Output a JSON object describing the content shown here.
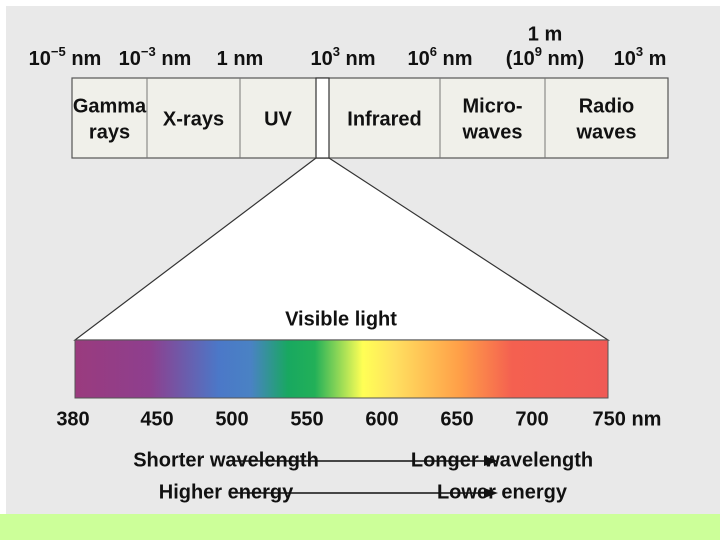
{
  "scale": [
    {
      "base": "10",
      "exp": "−5",
      "unit": "nm"
    },
    {
      "base": "10",
      "exp": "−3",
      "unit": "nm"
    },
    {
      "text": "1 nm"
    },
    {
      "base": "10",
      "exp": "3",
      "unit": "nm"
    },
    {
      "base": "10",
      "exp": "6",
      "unit": "nm"
    },
    {
      "top": "1 m",
      "prefix": "(",
      "base": "10",
      "exp": "9",
      "unit": "nm)"
    },
    {
      "base": "10",
      "exp": "3",
      "unit": "m"
    }
  ],
  "bands": [
    {
      "lines": [
        "Gamma",
        "rays"
      ]
    },
    {
      "lines": [
        "X-rays"
      ]
    },
    {
      "lines": [
        "UV"
      ]
    },
    {
      "lines": [
        "Infrared"
      ]
    },
    {
      "lines": [
        "Micro-",
        "waves"
      ]
    },
    {
      "lines": [
        "Radio",
        "waves"
      ]
    }
  ],
  "visible": {
    "title": "Visible light",
    "ticks": [
      "380",
      "450",
      "500",
      "550",
      "600",
      "650",
      "700",
      "750 nm"
    ]
  },
  "arrows": [
    {
      "left": "Shorter wavelength",
      "right": "Longer wavelength"
    },
    {
      "left": "Higher energy",
      "right": "Lower energy"
    }
  ]
}
